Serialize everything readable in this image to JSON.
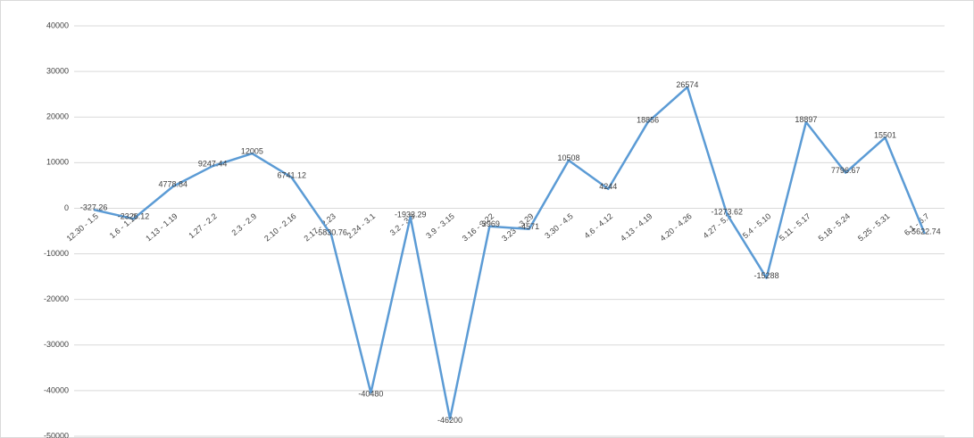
{
  "chart_data": {
    "type": "line",
    "categories": [
      "12.30 - 1.5",
      "1.6 - 1.12",
      "1.13 - 1.19",
      "1.27 - 2.2",
      "2.3 - 2.9",
      "2.10 - 2.16",
      "2.17 - 2.23",
      "2.24 - 3.1",
      "3.2 - 3.8",
      "3.9 - 3.15",
      "3.16 - 3.22",
      "3.23 - 3.29",
      "3.30 - 4.5",
      "4.6 - 4.12",
      "4.13 - 4.19",
      "4.20 - 4.26",
      "4.27 - 5.3",
      "5.4 - 5.10",
      "5.11 - 5.17",
      "5.18 - 5.24",
      "5.25 - 5.31",
      "6.1 - 6.7"
    ],
    "values": [
      -327.26,
      -2326.12,
      4778.84,
      9247.44,
      12005,
      6741.12,
      -5830.76,
      -40480,
      -1933.29,
      -46200,
      -3969,
      -4571,
      10508,
      4244,
      18856,
      26574,
      -1273.62,
      -15288,
      18897,
      7796.67,
      15501,
      -5622.74
    ],
    "color": "#5b9bd5",
    "ylim": [
      -50000,
      40000
    ],
    "yticks": [
      -50000,
      -40000,
      -30000,
      -20000,
      -10000,
      0,
      10000,
      20000,
      30000,
      40000
    ],
    "grid": true
  }
}
